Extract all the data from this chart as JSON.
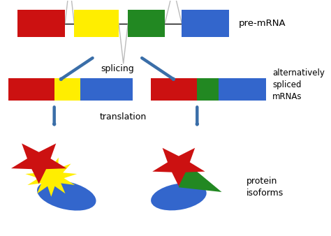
{
  "bg_color": "#ffffff",
  "red": "#cc1111",
  "yellow": "#ffee00",
  "green": "#228822",
  "blue": "#3366cc",
  "arrow_color": "#3a6ea8",
  "gray_line": "#bbbbbb",
  "text_color": "#000000",
  "pre_mrna_label": "pre-mRNA",
  "splicing_label": "splicing",
  "alt_spliced_label": "alternatively\nspliced\nmRNAs",
  "translation_label": "translation",
  "protein_label": "protein\nisoforms",
  "figsize": [
    4.74,
    3.38
  ],
  "dpi": 100
}
